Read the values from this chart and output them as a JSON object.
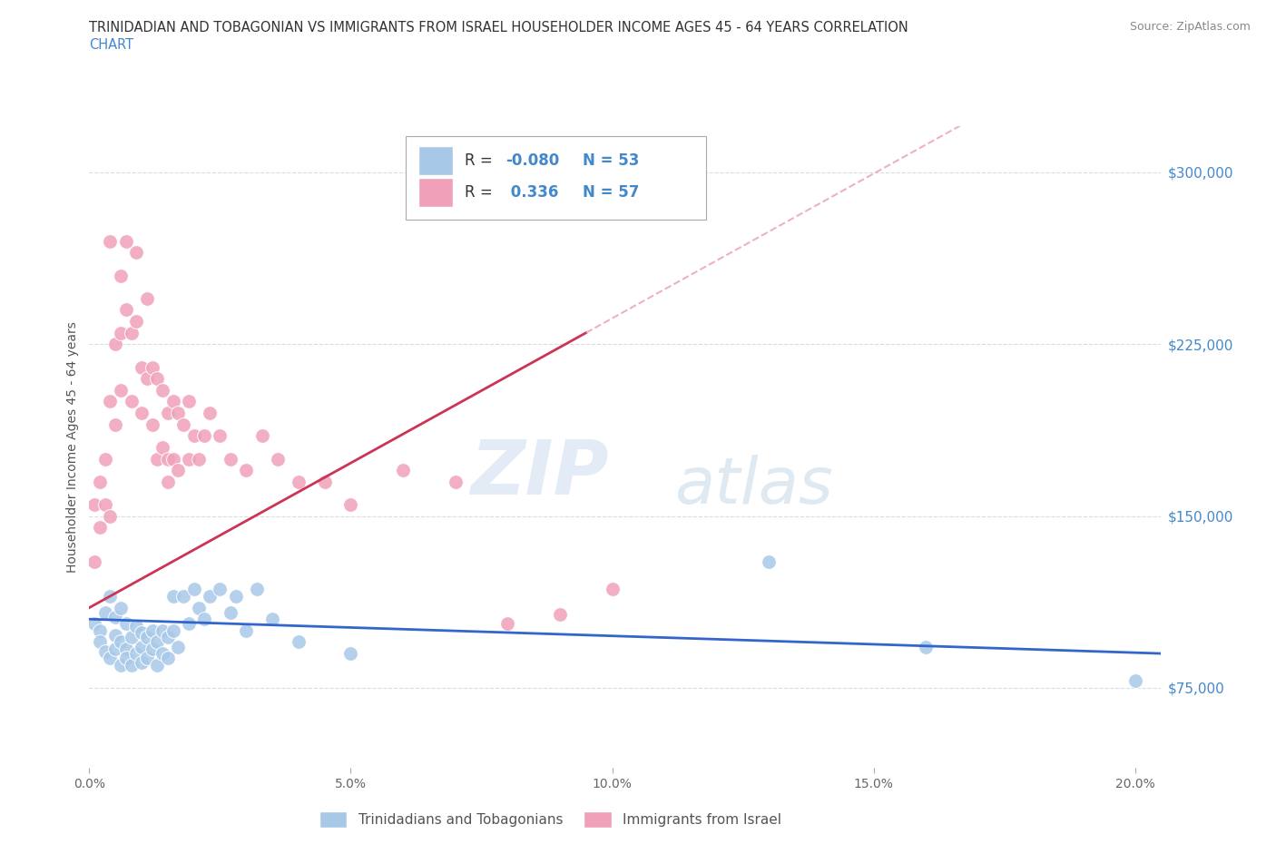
{
  "title_line1": "TRINIDADIAN AND TOBAGONIAN VS IMMIGRANTS FROM ISRAEL HOUSEHOLDER INCOME AGES 45 - 64 YEARS CORRELATION",
  "title_line2": "CHART",
  "source": "Source: ZipAtlas.com",
  "ylabel": "Householder Income Ages 45 - 64 years",
  "xlim": [
    0.0,
    0.205
  ],
  "ylim": [
    40000,
    320000
  ],
  "yticks": [
    75000,
    150000,
    225000,
    300000
  ],
  "ytick_labels": [
    "$75,000",
    "$150,000",
    "$225,000",
    "$300,000"
  ],
  "xticks": [
    0.0,
    0.05,
    0.1,
    0.15,
    0.2
  ],
  "xtick_labels": [
    "0.0%",
    "5.0%",
    "10.0%",
    "15.0%",
    "20.0%"
  ],
  "blue_R": -0.08,
  "blue_N": 53,
  "pink_R": 0.336,
  "pink_N": 57,
  "blue_color": "#a8c8e8",
  "pink_color": "#f0a0b8",
  "blue_line_color": "#3366cc",
  "pink_line_color": "#cc3355",
  "pink_dash_color": "#e8a0b0",
  "watermark_zip": "ZIP",
  "watermark_atlas": "atlas",
  "background_color": "#ffffff",
  "grid_color": "#cccccc",
  "blue_scatter_x": [
    0.001,
    0.002,
    0.002,
    0.003,
    0.003,
    0.004,
    0.004,
    0.005,
    0.005,
    0.005,
    0.006,
    0.006,
    0.006,
    0.007,
    0.007,
    0.007,
    0.008,
    0.008,
    0.009,
    0.009,
    0.01,
    0.01,
    0.01,
    0.011,
    0.011,
    0.012,
    0.012,
    0.013,
    0.013,
    0.014,
    0.014,
    0.015,
    0.015,
    0.016,
    0.016,
    0.017,
    0.018,
    0.019,
    0.02,
    0.021,
    0.022,
    0.023,
    0.025,
    0.027,
    0.028,
    0.03,
    0.032,
    0.035,
    0.04,
    0.05,
    0.13,
    0.16,
    0.2
  ],
  "blue_scatter_y": [
    103000,
    100000,
    95000,
    108000,
    91000,
    115000,
    88000,
    106000,
    98000,
    92000,
    110000,
    95000,
    85000,
    103000,
    92000,
    88000,
    97000,
    85000,
    102000,
    90000,
    99000,
    93000,
    86000,
    97000,
    88000,
    100000,
    92000,
    95000,
    85000,
    100000,
    90000,
    97000,
    88000,
    115000,
    100000,
    93000,
    115000,
    103000,
    118000,
    110000,
    105000,
    115000,
    118000,
    108000,
    115000,
    100000,
    118000,
    105000,
    95000,
    90000,
    130000,
    93000,
    78000
  ],
  "pink_scatter_x": [
    0.001,
    0.001,
    0.002,
    0.002,
    0.003,
    0.003,
    0.004,
    0.004,
    0.004,
    0.005,
    0.005,
    0.006,
    0.006,
    0.006,
    0.007,
    0.007,
    0.008,
    0.008,
    0.009,
    0.009,
    0.01,
    0.01,
    0.011,
    0.011,
    0.012,
    0.012,
    0.013,
    0.013,
    0.014,
    0.014,
    0.015,
    0.015,
    0.015,
    0.016,
    0.016,
    0.017,
    0.017,
    0.018,
    0.019,
    0.019,
    0.02,
    0.021,
    0.022,
    0.023,
    0.025,
    0.027,
    0.03,
    0.033,
    0.036,
    0.04,
    0.045,
    0.05,
    0.06,
    0.07,
    0.08,
    0.09,
    0.1
  ],
  "pink_scatter_y": [
    155000,
    130000,
    165000,
    145000,
    175000,
    155000,
    270000,
    200000,
    150000,
    225000,
    190000,
    255000,
    230000,
    205000,
    270000,
    240000,
    230000,
    200000,
    265000,
    235000,
    215000,
    195000,
    245000,
    210000,
    215000,
    190000,
    210000,
    175000,
    205000,
    180000,
    175000,
    195000,
    165000,
    200000,
    175000,
    195000,
    170000,
    190000,
    200000,
    175000,
    185000,
    175000,
    185000,
    195000,
    185000,
    175000,
    170000,
    185000,
    175000,
    165000,
    165000,
    155000,
    170000,
    165000,
    103000,
    107000,
    118000
  ]
}
